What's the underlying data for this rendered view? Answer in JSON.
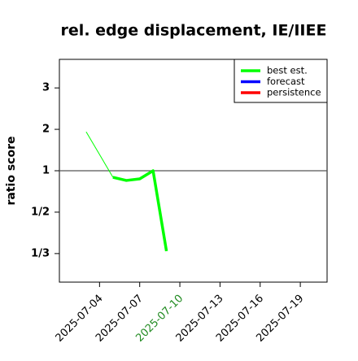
{
  "chart_data": {
    "type": "line",
    "title": "rel. edge displacement, IE/IIEE",
    "y_label": "ratio score",
    "yscale": "ratio",
    "x": [
      "2025-07-03",
      "2025-07-04",
      "2025-07-05",
      "2025-07-06",
      "2025-07-07",
      "2025-07-08",
      "2025-07-09"
    ],
    "series": [
      {
        "name": "best est.",
        "color": "#00ff00",
        "values": [
          1.94,
          null,
          0.864,
          0.81,
          0.836,
          1.0,
          0.34
        ]
      },
      {
        "name": "forecast",
        "color": "#0000ff",
        "values": [
          null,
          null,
          null,
          null,
          null,
          null,
          null
        ]
      },
      {
        "name": "persistence",
        "color": "#ff0000",
        "values": [
          null,
          null,
          null,
          null,
          null,
          null,
          null
        ]
      }
    ],
    "xlim": [
      "2025-07-01",
      "2025-07-21"
    ],
    "xticks": [
      "2025-07-04",
      "2025-07-07",
      "2025-07-10",
      "2025-07-13",
      "2025-07-16",
      "2025-07-19"
    ],
    "highlight_xtick": "2025-07-10",
    "highlight_color": "#228b22",
    "ylim": [
      0.271,
      3.69
    ],
    "yticks": [
      {
        "value": 0.3333,
        "label": "1/3"
      },
      {
        "value": 0.5,
        "label": "1/2"
      },
      1,
      2,
      3
    ],
    "reference_line": 1,
    "legend": "top-right"
  }
}
